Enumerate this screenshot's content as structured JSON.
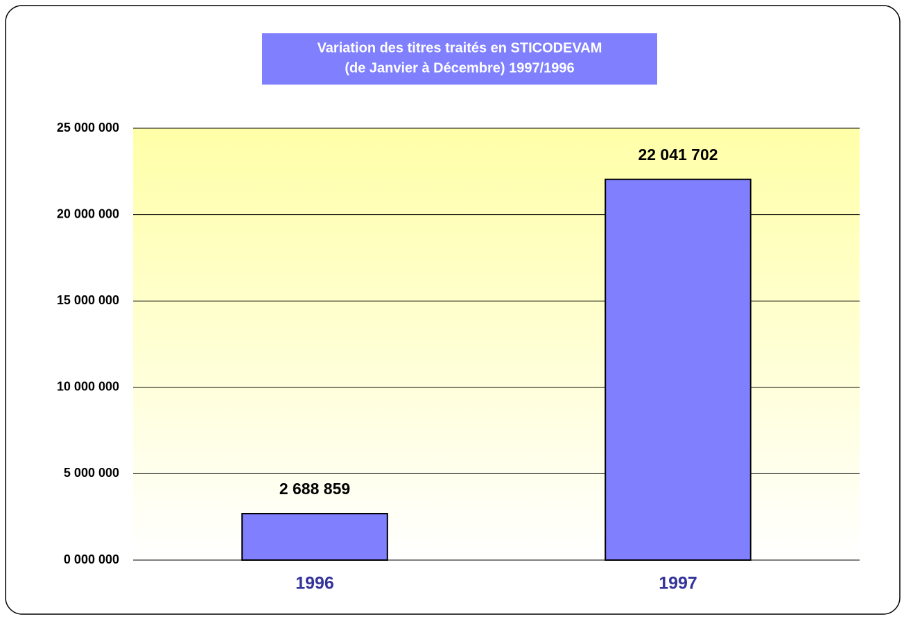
{
  "chart_data": {
    "type": "bar",
    "title": [
      "Variation des titres traités en STICODEVAM",
      "(de Janvier à Décembre) 1997/1996"
    ],
    "categories": [
      "1996",
      "1997"
    ],
    "values": [
      2688859,
      22041702
    ],
    "value_labels": [
      "2 688 859",
      "22 041 702"
    ],
    "color": "#8080ff",
    "ylim": [
      0,
      25000000
    ],
    "yticks": [
      {
        "value": 0,
        "label": "0 000 000"
      },
      {
        "value": 5000000,
        "label": "5 000 000"
      },
      {
        "value": 10000000,
        "label": "10 000 000"
      },
      {
        "value": 15000000,
        "label": "15 000 000"
      },
      {
        "value": 20000000,
        "label": "20 000 000"
      },
      {
        "value": 25000000,
        "label": "25 000 000"
      }
    ],
    "grid": true
  }
}
